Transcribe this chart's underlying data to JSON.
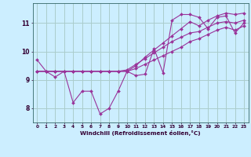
{
  "background_color": "#cceeff",
  "grid_color": "#aacccc",
  "line_color": "#993399",
  "marker_color": "#993399",
  "xlabel": "Windchill (Refroidissement éolien,°C)",
  "xlim": [
    -0.5,
    23.5
  ],
  "ylim": [
    7.5,
    11.7
  ],
  "yticks": [
    8,
    9,
    10,
    11
  ],
  "xticks": [
    0,
    1,
    2,
    3,
    4,
    5,
    6,
    7,
    8,
    9,
    10,
    11,
    12,
    13,
    14,
    15,
    16,
    17,
    18,
    19,
    20,
    21,
    22,
    23
  ],
  "series": [
    [
      9.7,
      9.3,
      9.1,
      9.3,
      8.2,
      8.6,
      8.6,
      7.8,
      8.0,
      8.6,
      9.3,
      9.15,
      9.2,
      10.1,
      9.25,
      11.1,
      11.3,
      11.3,
      11.2,
      10.8,
      11.2,
      11.25,
      10.65,
      11.0
    ],
    [
      9.3,
      9.3,
      9.3,
      9.3,
      9.3,
      9.3,
      9.3,
      9.3,
      9.3,
      9.3,
      9.3,
      9.5,
      9.8,
      10.05,
      10.3,
      10.55,
      10.8,
      11.05,
      10.9,
      11.1,
      11.25,
      11.35,
      11.3,
      11.35
    ],
    [
      9.3,
      9.3,
      9.3,
      9.3,
      9.3,
      9.3,
      9.3,
      9.3,
      9.3,
      9.3,
      9.35,
      9.55,
      9.75,
      9.95,
      10.15,
      10.35,
      10.5,
      10.65,
      10.7,
      10.85,
      11.0,
      11.05,
      11.0,
      11.1
    ],
    [
      9.3,
      9.3,
      9.3,
      9.3,
      9.3,
      9.3,
      9.3,
      9.3,
      9.3,
      9.3,
      9.3,
      9.4,
      9.55,
      9.7,
      9.85,
      10.0,
      10.15,
      10.35,
      10.45,
      10.6,
      10.75,
      10.85,
      10.75,
      10.9
    ]
  ]
}
